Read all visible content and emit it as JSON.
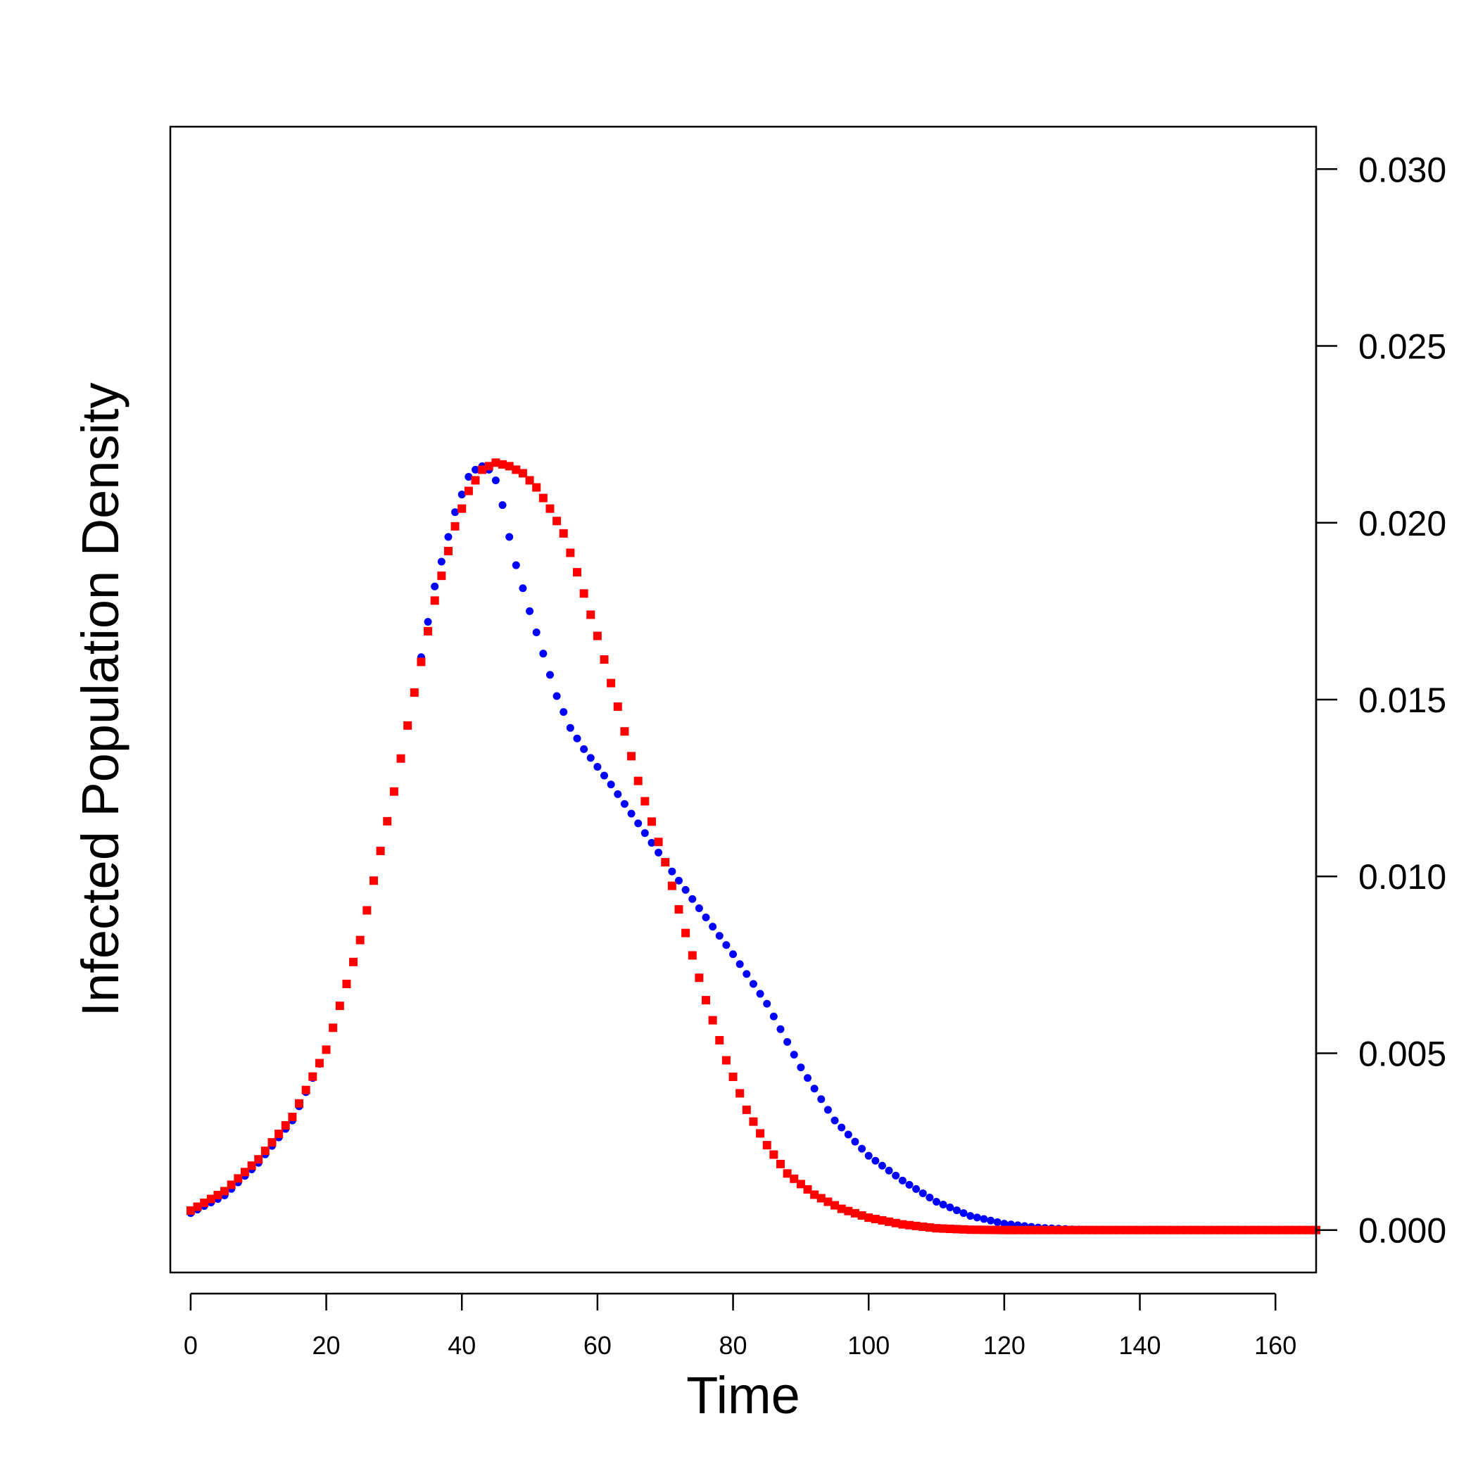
{
  "chart_data": {
    "type": "scatter",
    "title": "",
    "xlabel": "Time",
    "ylabel": "Infected Population Density",
    "xlim": [
      -3,
      166
    ],
    "ylim": [
      -0.0012,
      0.0312
    ],
    "x_ticks": [
      0,
      20,
      40,
      60,
      80,
      100,
      120,
      140,
      160
    ],
    "x_tick_labels": [
      "0",
      "20",
      "40",
      "60",
      "80",
      "100",
      "120",
      "140",
      "160"
    ],
    "y_ticks": [
      0,
      0.005,
      0.01,
      0.015,
      0.02,
      0.025,
      0.03
    ],
    "y_tick_labels": [
      "0.000",
      "0.005",
      "0.010",
      "0.015",
      "0.020",
      "0.025",
      "0.030"
    ],
    "y_axis_side": "right",
    "grid": false,
    "x": {
      "start": 0,
      "end": 166,
      "step": 1
    },
    "series": [
      {
        "name": "blue series",
        "color": "#0000ff",
        "marker": "circle",
        "keypoints": [
          [
            0,
            0.00048
          ],
          [
            5,
            0.00098
          ],
          [
            10,
            0.0019
          ],
          [
            15,
            0.0031
          ],
          [
            20,
            0.0051
          ],
          [
            25,
            0.0082
          ],
          [
            30,
            0.0124
          ],
          [
            33,
            0.0152
          ],
          [
            36,
            0.0182
          ],
          [
            39,
            0.0203
          ],
          [
            41,
            0.0213
          ],
          [
            42,
            0.0215
          ],
          [
            43,
            0.0216
          ],
          [
            44,
            0.0215
          ],
          [
            45,
            0.0212
          ],
          [
            46,
            0.0205
          ],
          [
            47,
            0.0196
          ],
          [
            48,
            0.0188
          ],
          [
            50,
            0.0175
          ],
          [
            52,
            0.0163
          ],
          [
            54,
            0.0151
          ],
          [
            56,
            0.0142
          ],
          [
            58,
            0.0136
          ],
          [
            62,
            0.0126
          ],
          [
            66,
            0.0115
          ],
          [
            70,
            0.0104
          ],
          [
            75,
            0.0091
          ],
          [
            80,
            0.0078
          ],
          [
            85,
            0.0064
          ],
          [
            90,
            0.0046
          ],
          [
            95,
            0.0031
          ],
          [
            100,
            0.0021
          ],
          [
            105,
            0.0014
          ],
          [
            110,
            0.0008
          ],
          [
            115,
            0.0004
          ],
          [
            120,
            0.00018
          ],
          [
            125,
            7e-05
          ],
          [
            130,
            2e-05
          ],
          [
            135,
            0.0
          ],
          [
            166,
            0.0
          ]
        ]
      },
      {
        "name": "red series",
        "color": "#ff0000",
        "marker": "square",
        "keypoints": [
          [
            0,
            0.00055
          ],
          [
            5,
            0.0011
          ],
          [
            10,
            0.002
          ],
          [
            15,
            0.0032
          ],
          [
            20,
            0.0051
          ],
          [
            25,
            0.0082
          ],
          [
            30,
            0.0124
          ],
          [
            33,
            0.0152
          ],
          [
            36,
            0.0178
          ],
          [
            39,
            0.0199
          ],
          [
            41,
            0.0209
          ],
          [
            43,
            0.0215
          ],
          [
            45,
            0.0217
          ],
          [
            47,
            0.0216
          ],
          [
            49,
            0.0214
          ],
          [
            51,
            0.021
          ],
          [
            53,
            0.0204
          ],
          [
            55,
            0.0197
          ],
          [
            57,
            0.0186
          ],
          [
            60,
            0.0168
          ],
          [
            63,
            0.0148
          ],
          [
            66,
            0.0127
          ],
          [
            70,
            0.0104
          ],
          [
            73,
            0.0084
          ],
          [
            76,
            0.0065
          ],
          [
            79,
            0.0048
          ],
          [
            82,
            0.0034
          ],
          [
            85,
            0.0024
          ],
          [
            88,
            0.0016
          ],
          [
            92,
            0.001
          ],
          [
            96,
            0.0006
          ],
          [
            100,
            0.00035
          ],
          [
            105,
            0.00016
          ],
          [
            110,
            5e-05
          ],
          [
            115,
            1e-05
          ],
          [
            120,
            0.0
          ],
          [
            166,
            0.0
          ]
        ]
      }
    ]
  }
}
